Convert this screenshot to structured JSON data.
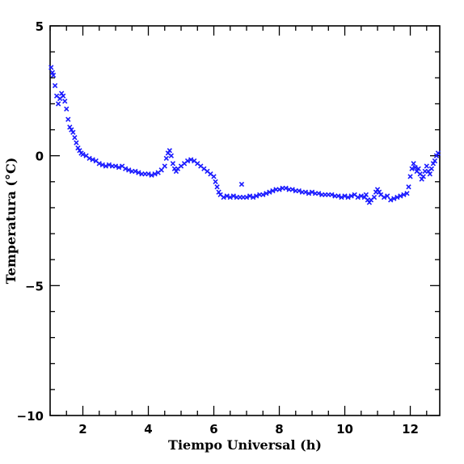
{
  "chart_data": {
    "type": "scatter",
    "title": "",
    "xlabel": "Tiempo Universal (h)",
    "ylabel": "Temperatura (°C)",
    "xlim": [
      1.0,
      12.9
    ],
    "ylim": [
      -10,
      5
    ],
    "x_ticks": [
      2,
      4,
      6,
      8,
      10,
      12
    ],
    "x_tick_labels": [
      "2",
      "4",
      "6",
      "8",
      "10",
      "12"
    ],
    "y_ticks": [
      -10,
      -5,
      0,
      5
    ],
    "y_tick_labels": [
      "−10",
      "−5",
      "0",
      "5"
    ],
    "marker": "x",
    "marker_color": "#1a1aff",
    "grid": false,
    "series": [
      {
        "points": [
          [
            1.03,
            3.4
          ],
          [
            1.07,
            3.2
          ],
          [
            1.1,
            3.1
          ],
          [
            1.15,
            2.7
          ],
          [
            1.2,
            2.3
          ],
          [
            1.25,
            2.0
          ],
          [
            1.3,
            2.2
          ],
          [
            1.35,
            2.4
          ],
          [
            1.4,
            2.3
          ],
          [
            1.45,
            2.1
          ],
          [
            1.5,
            1.8
          ],
          [
            1.55,
            1.4
          ],
          [
            1.6,
            1.1
          ],
          [
            1.65,
            1.0
          ],
          [
            1.7,
            0.9
          ],
          [
            1.75,
            0.7
          ],
          [
            1.8,
            0.5
          ],
          [
            1.85,
            0.3
          ],
          [
            1.9,
            0.2
          ],
          [
            1.95,
            0.1
          ],
          [
            2.0,
            0.05
          ],
          [
            2.1,
            0.0
          ],
          [
            2.2,
            -0.1
          ],
          [
            2.3,
            -0.15
          ],
          [
            2.4,
            -0.2
          ],
          [
            2.5,
            -0.3
          ],
          [
            2.6,
            -0.35
          ],
          [
            2.7,
            -0.4
          ],
          [
            2.8,
            -0.35
          ],
          [
            2.9,
            -0.4
          ],
          [
            3.0,
            -0.4
          ],
          [
            3.1,
            -0.45
          ],
          [
            3.2,
            -0.4
          ],
          [
            3.3,
            -0.5
          ],
          [
            3.4,
            -0.55
          ],
          [
            3.5,
            -0.6
          ],
          [
            3.6,
            -0.6
          ],
          [
            3.7,
            -0.65
          ],
          [
            3.8,
            -0.7
          ],
          [
            3.9,
            -0.7
          ],
          [
            4.0,
            -0.7
          ],
          [
            4.1,
            -0.75
          ],
          [
            4.2,
            -0.7
          ],
          [
            4.3,
            -0.65
          ],
          [
            4.4,
            -0.55
          ],
          [
            4.5,
            -0.4
          ],
          [
            4.55,
            -0.1
          ],
          [
            4.6,
            0.1
          ],
          [
            4.65,
            0.2
          ],
          [
            4.7,
            0.0
          ],
          [
            4.75,
            -0.3
          ],
          [
            4.8,
            -0.5
          ],
          [
            4.85,
            -0.6
          ],
          [
            4.9,
            -0.5
          ],
          [
            5.0,
            -0.4
          ],
          [
            5.1,
            -0.3
          ],
          [
            5.2,
            -0.2
          ],
          [
            5.3,
            -0.15
          ],
          [
            5.4,
            -0.2
          ],
          [
            5.5,
            -0.3
          ],
          [
            5.6,
            -0.4
          ],
          [
            5.7,
            -0.5
          ],
          [
            5.8,
            -0.6
          ],
          [
            5.9,
            -0.7
          ],
          [
            6.0,
            -0.8
          ],
          [
            6.05,
            -1.0
          ],
          [
            6.1,
            -1.2
          ],
          [
            6.15,
            -1.4
          ],
          [
            6.2,
            -1.5
          ],
          [
            6.3,
            -1.6
          ],
          [
            6.4,
            -1.55
          ],
          [
            6.5,
            -1.6
          ],
          [
            6.6,
            -1.55
          ],
          [
            6.7,
            -1.6
          ],
          [
            6.8,
            -1.6
          ],
          [
            6.85,
            -1.1
          ],
          [
            6.9,
            -1.6
          ],
          [
            7.0,
            -1.6
          ],
          [
            7.1,
            -1.55
          ],
          [
            7.2,
            -1.6
          ],
          [
            7.3,
            -1.55
          ],
          [
            7.4,
            -1.5
          ],
          [
            7.5,
            -1.5
          ],
          [
            7.6,
            -1.45
          ],
          [
            7.7,
            -1.4
          ],
          [
            7.8,
            -1.35
          ],
          [
            7.9,
            -1.3
          ],
          [
            8.0,
            -1.3
          ],
          [
            8.1,
            -1.25
          ],
          [
            8.2,
            -1.25
          ],
          [
            8.3,
            -1.3
          ],
          [
            8.4,
            -1.3
          ],
          [
            8.5,
            -1.35
          ],
          [
            8.6,
            -1.35
          ],
          [
            8.7,
            -1.4
          ],
          [
            8.8,
            -1.4
          ],
          [
            8.9,
            -1.45
          ],
          [
            9.0,
            -1.4
          ],
          [
            9.1,
            -1.45
          ],
          [
            9.2,
            -1.45
          ],
          [
            9.3,
            -1.5
          ],
          [
            9.4,
            -1.5
          ],
          [
            9.5,
            -1.5
          ],
          [
            9.6,
            -1.5
          ],
          [
            9.7,
            -1.55
          ],
          [
            9.8,
            -1.55
          ],
          [
            9.9,
            -1.6
          ],
          [
            10.0,
            -1.55
          ],
          [
            10.1,
            -1.6
          ],
          [
            10.2,
            -1.55
          ],
          [
            10.3,
            -1.5
          ],
          [
            10.4,
            -1.6
          ],
          [
            10.5,
            -1.55
          ],
          [
            10.6,
            -1.6
          ],
          [
            10.65,
            -1.5
          ],
          [
            10.7,
            -1.7
          ],
          [
            10.75,
            -1.8
          ],
          [
            10.8,
            -1.7
          ],
          [
            10.9,
            -1.6
          ],
          [
            10.95,
            -1.4
          ],
          [
            11.0,
            -1.3
          ],
          [
            11.05,
            -1.4
          ],
          [
            11.1,
            -1.5
          ],
          [
            11.2,
            -1.6
          ],
          [
            11.3,
            -1.55
          ],
          [
            11.4,
            -1.7
          ],
          [
            11.5,
            -1.65
          ],
          [
            11.6,
            -1.6
          ],
          [
            11.7,
            -1.55
          ],
          [
            11.8,
            -1.5
          ],
          [
            11.9,
            -1.45
          ],
          [
            11.95,
            -1.2
          ],
          [
            12.0,
            -0.8
          ],
          [
            12.05,
            -0.5
          ],
          [
            12.1,
            -0.3
          ],
          [
            12.15,
            -0.45
          ],
          [
            12.2,
            -0.6
          ],
          [
            12.25,
            -0.5
          ],
          [
            12.3,
            -0.7
          ],
          [
            12.35,
            -0.9
          ],
          [
            12.4,
            -0.8
          ],
          [
            12.45,
            -0.6
          ],
          [
            12.5,
            -0.4
          ],
          [
            12.55,
            -0.6
          ],
          [
            12.6,
            -0.7
          ],
          [
            12.65,
            -0.5
          ],
          [
            12.7,
            -0.3
          ],
          [
            12.75,
            -0.2
          ],
          [
            12.8,
            0.0
          ],
          [
            12.85,
            0.1
          ]
        ]
      }
    ]
  }
}
